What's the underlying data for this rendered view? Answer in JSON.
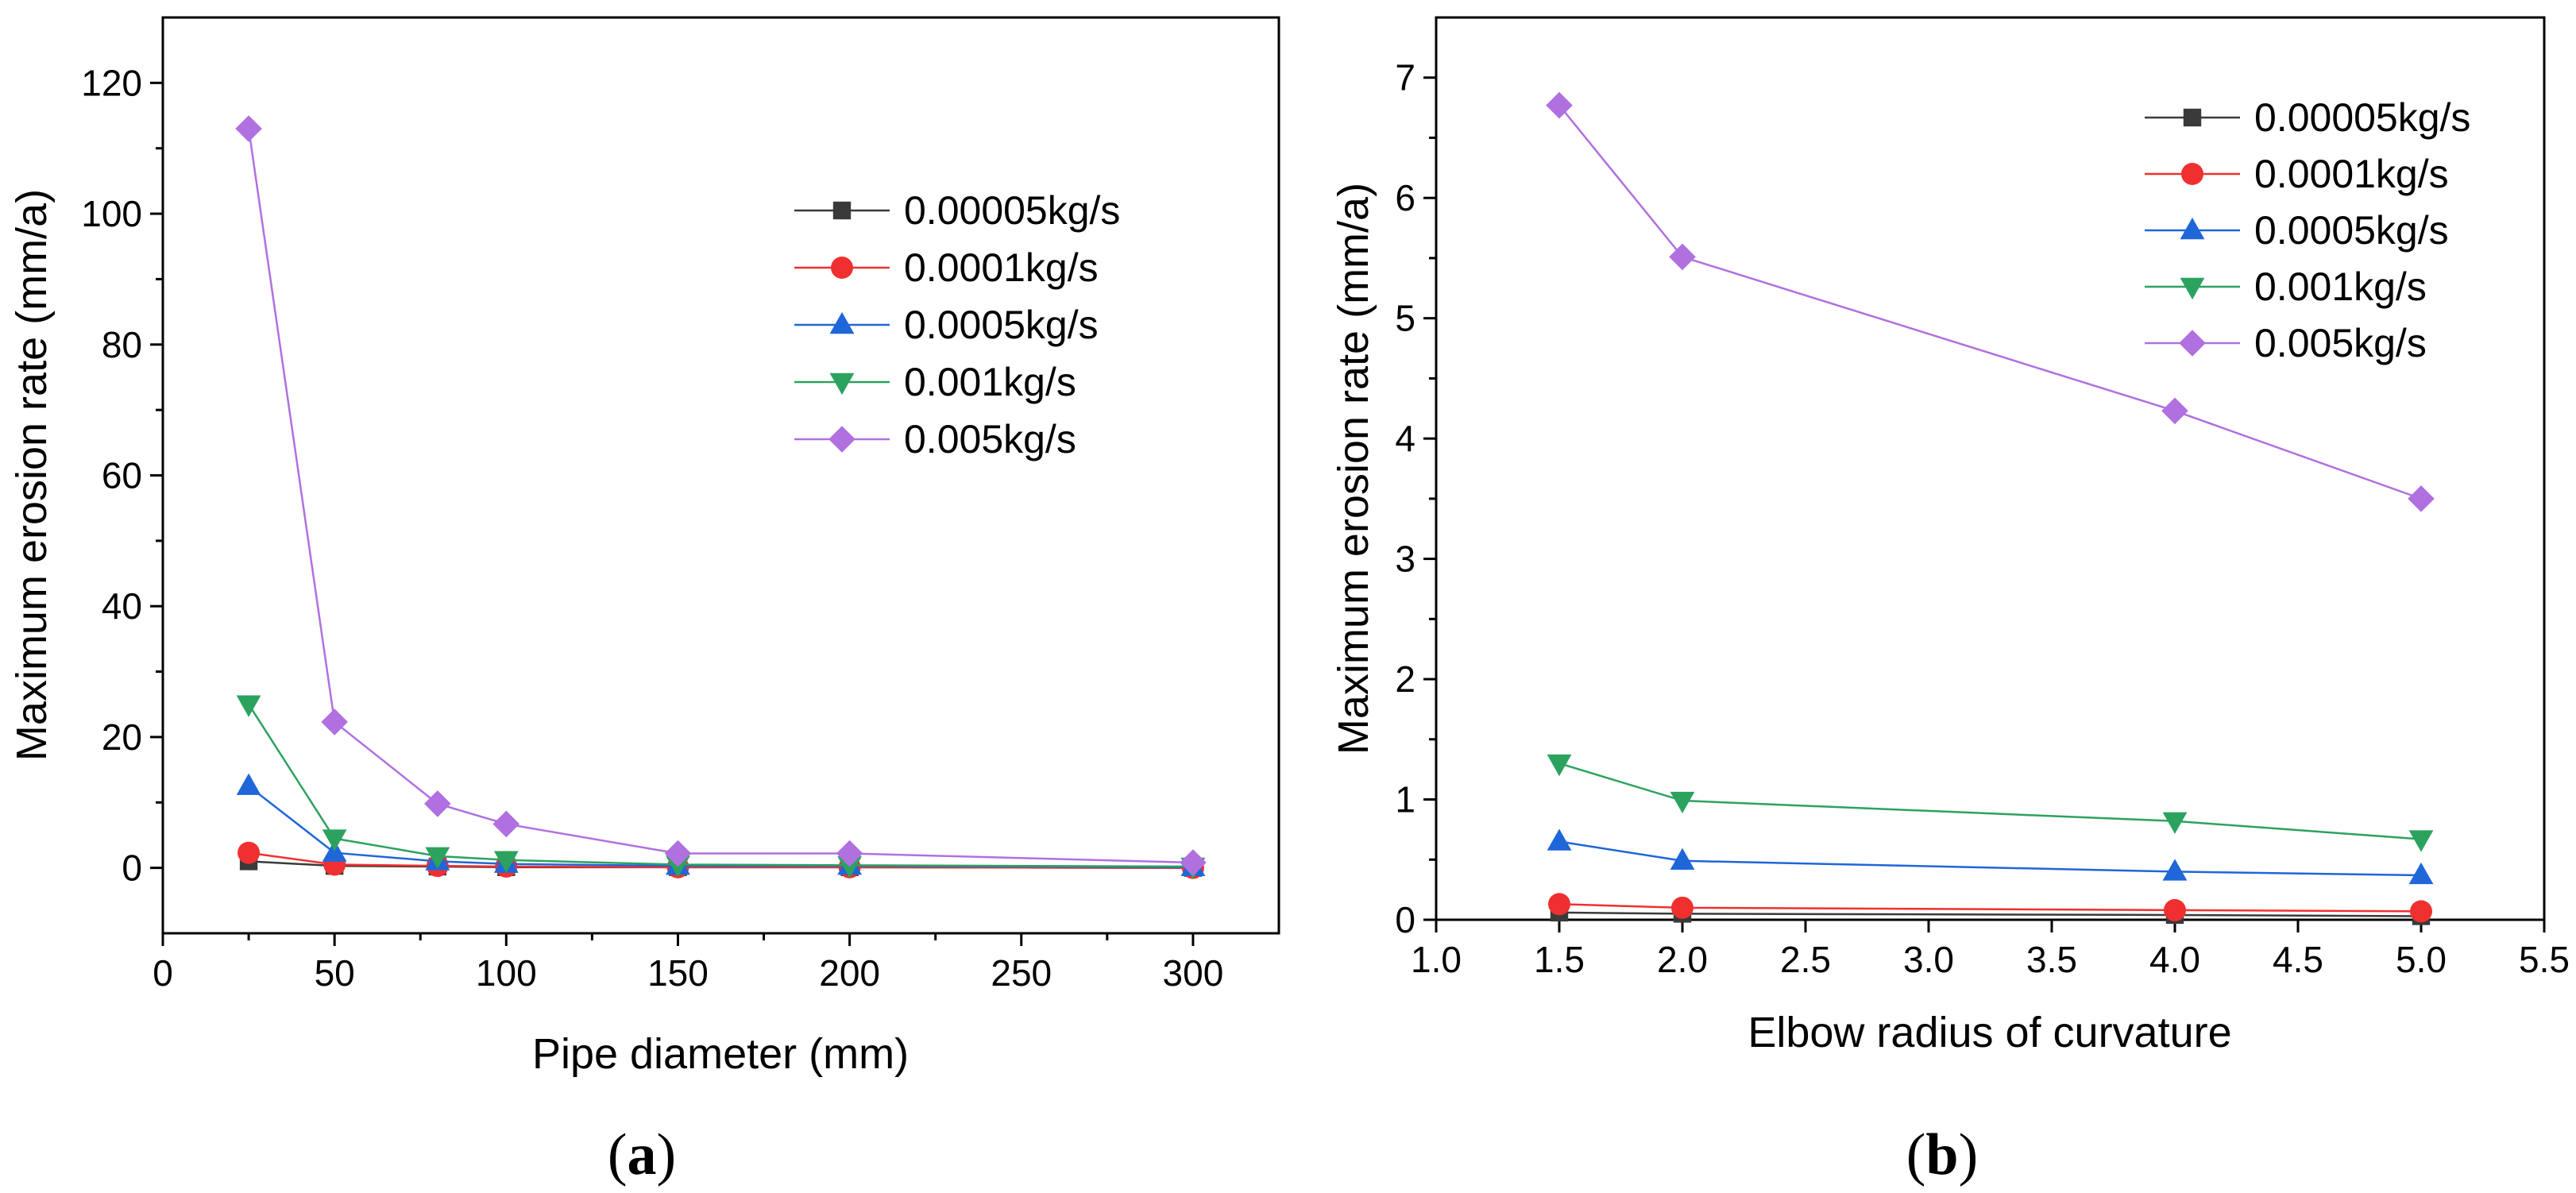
{
  "chart_data": [
    {
      "type": "line",
      "panel_label": "a",
      "title": "",
      "xlabel": "Pipe diameter (mm)",
      "ylabel": "Maximum erosion rate (mm/a)",
      "xlim": [
        0,
        325
      ],
      "ylim": [
        -10,
        130
      ],
      "xticks": [
        0,
        50,
        100,
        150,
        200,
        250,
        300
      ],
      "yticks": [
        0,
        20,
        40,
        60,
        80,
        100,
        120
      ],
      "grid": false,
      "legend_position": "top-right",
      "x": [
        25,
        50,
        80,
        100,
        150,
        200,
        300
      ],
      "series": [
        {
          "name": "0.00005kg/s",
          "color": "#3a3a3a",
          "marker": "square",
          "values": [
            1.0,
            0.3,
            0.2,
            0.1,
            0.1,
            0.1,
            0.0
          ]
        },
        {
          "name": "0.0001kg/s",
          "color": "#f03030",
          "marker": "circle",
          "values": [
            2.3,
            0.5,
            0.3,
            0.2,
            0.1,
            0.1,
            0.0
          ]
        },
        {
          "name": "0.0005kg/s",
          "color": "#1f66d9",
          "marker": "triangle-up",
          "values": [
            12.5,
            2.3,
            1.0,
            0.6,
            0.3,
            0.3,
            0.1
          ]
        },
        {
          "name": "0.001kg/s",
          "color": "#2ca25f",
          "marker": "triangle-down",
          "values": [
            25.0,
            4.5,
            1.8,
            1.2,
            0.5,
            0.4,
            0.2
          ]
        },
        {
          "name": "0.005kg/s",
          "color": "#b070e0",
          "marker": "diamond",
          "values": [
            113.0,
            22.3,
            9.8,
            6.7,
            2.2,
            2.2,
            0.8
          ]
        }
      ]
    },
    {
      "type": "line",
      "panel_label": "b",
      "title": "",
      "xlabel": "Elbow radius of curvature",
      "ylabel": "Maximum erosion rate (mm/a)",
      "xlim": [
        1.0,
        5.5
      ],
      "ylim": [
        0,
        7.5
      ],
      "xticks": [
        "1.0",
        "1.5",
        "2.0",
        "2.5",
        "3.0",
        "3.5",
        "4.0",
        "4.5",
        "5.0",
        "5.5"
      ],
      "yticks": [
        0,
        1,
        2,
        3,
        4,
        5,
        6,
        7
      ],
      "grid": false,
      "legend_position": "top-right",
      "x": [
        1.5,
        2.0,
        4.0,
        5.0
      ],
      "series": [
        {
          "name": "0.00005kg/s",
          "color": "#3a3a3a",
          "marker": "square",
          "values": [
            0.06,
            0.05,
            0.04,
            0.03
          ]
        },
        {
          "name": "0.0001kg/s",
          "color": "#f03030",
          "marker": "circle",
          "values": [
            0.13,
            0.1,
            0.08,
            0.07
          ]
        },
        {
          "name": "0.0005kg/s",
          "color": "#1f66d9",
          "marker": "triangle-up",
          "values": [
            0.65,
            0.49,
            0.4,
            0.37
          ]
        },
        {
          "name": "0.001kg/s",
          "color": "#2ca25f",
          "marker": "triangle-down",
          "values": [
            1.3,
            0.99,
            0.82,
            0.67
          ]
        },
        {
          "name": "0.005kg/s",
          "color": "#b070e0",
          "marker": "diamond",
          "values": [
            6.77,
            5.51,
            4.23,
            3.5
          ]
        }
      ]
    }
  ]
}
